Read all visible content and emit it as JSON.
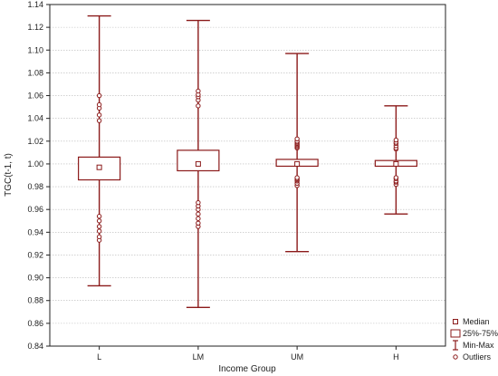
{
  "chart_data": {
    "type": "box",
    "xlabel": "Income Group",
    "ylabel": "TGC(t-1, t)",
    "ylim": [
      0.84,
      1.14
    ],
    "yticks": [
      0.84,
      0.86,
      0.88,
      0.9,
      0.92,
      0.94,
      0.96,
      0.98,
      1.0,
      1.02,
      1.04,
      1.06,
      1.08,
      1.1,
      1.12,
      1.14
    ],
    "ytick_labels": [
      "0.84",
      "0.86",
      "0.88",
      "0.90",
      "0.92",
      "0.94",
      "0.96",
      "0.98",
      "1.00",
      "1.02",
      "1.04",
      "1.06",
      "1.08",
      "1.10",
      "1.12",
      "1.14"
    ],
    "grid": true,
    "legend_position": "bottom-right",
    "colors": {
      "box": "#8b1a1a"
    },
    "categories": [
      "L",
      "LM",
      "UM",
      "H"
    ],
    "boxes": [
      {
        "name": "L",
        "median": 0.997,
        "q1": 0.986,
        "q3": 1.006,
        "min": 0.893,
        "max": 1.13,
        "outliers": [
          0.933,
          0.936,
          0.941,
          0.945,
          0.95,
          0.954,
          1.038,
          1.043,
          1.049,
          1.052,
          1.06
        ]
      },
      {
        "name": "LM",
        "median": 1.0,
        "q1": 0.994,
        "q3": 1.012,
        "min": 0.874,
        "max": 1.126,
        "outliers": [
          0.945,
          0.948,
          0.952,
          0.956,
          0.96,
          0.963,
          0.966,
          1.051,
          1.056,
          1.059,
          1.061,
          1.064
        ]
      },
      {
        "name": "UM",
        "median": 1.0,
        "q1": 0.998,
        "q3": 1.004,
        "min": 0.923,
        "max": 1.097,
        "outliers": [
          0.981,
          0.983,
          0.985,
          0.986,
          0.987,
          0.988,
          1.014,
          1.015,
          1.016,
          1.017,
          1.018,
          1.019,
          1.02,
          1.022
        ]
      },
      {
        "name": "H",
        "median": 1.0,
        "q1": 0.998,
        "q3": 1.003,
        "min": 0.956,
        "max": 1.051,
        "outliers": [
          0.982,
          0.984,
          0.985,
          0.987,
          0.988,
          1.013,
          1.014,
          1.016,
          1.018,
          1.019,
          1.021
        ]
      }
    ],
    "legend": [
      "Median",
      "25%-75%",
      "Min-Max",
      "Outliers"
    ]
  }
}
